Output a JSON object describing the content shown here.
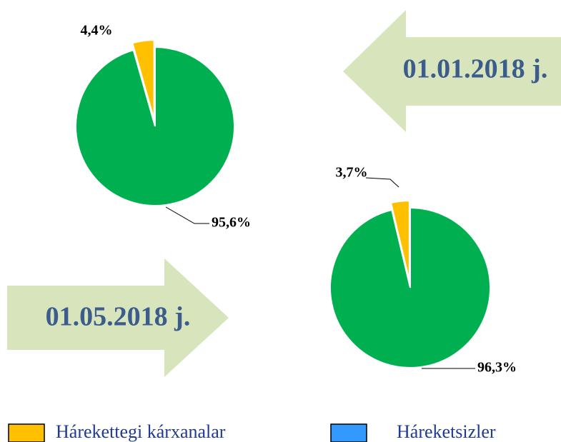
{
  "chart_data": [
    {
      "type": "pie",
      "annotation": "01.01.2018 j.",
      "values": [
        4.4,
        95.6
      ],
      "value_labels": [
        "4,4%",
        "95,6%"
      ],
      "colors": [
        "#ffc000",
        "#00b050"
      ]
    },
    {
      "type": "pie",
      "annotation": "01.05.2018 j.",
      "values": [
        3.7,
        96.3
      ],
      "value_labels": [
        "3,7%",
        "96,3%"
      ],
      "colors": [
        "#ffc000",
        "#00b050"
      ]
    }
  ],
  "legend": [
    {
      "name": "Hárekettegi kárxanalar",
      "color": "#ffc000"
    },
    {
      "name": "Háreketsizler",
      "color": "#3399ff"
    }
  ]
}
